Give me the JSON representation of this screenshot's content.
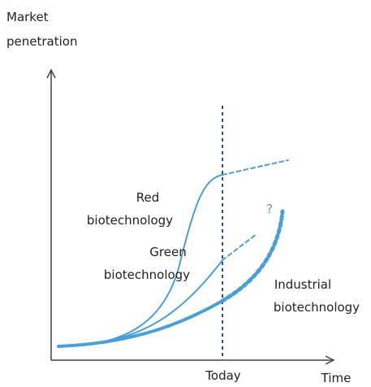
{
  "axes": {
    "y_label": [
      "Market",
      "penetration"
    ],
    "x_label": "Time",
    "marker": "Today"
  },
  "curves": {
    "red": [
      "Red",
      "biotechnology"
    ],
    "green": [
      "Green",
      "biotechnology"
    ],
    "industrial": [
      "Industrial",
      "biotechnology"
    ]
  },
  "question": "?"
}
